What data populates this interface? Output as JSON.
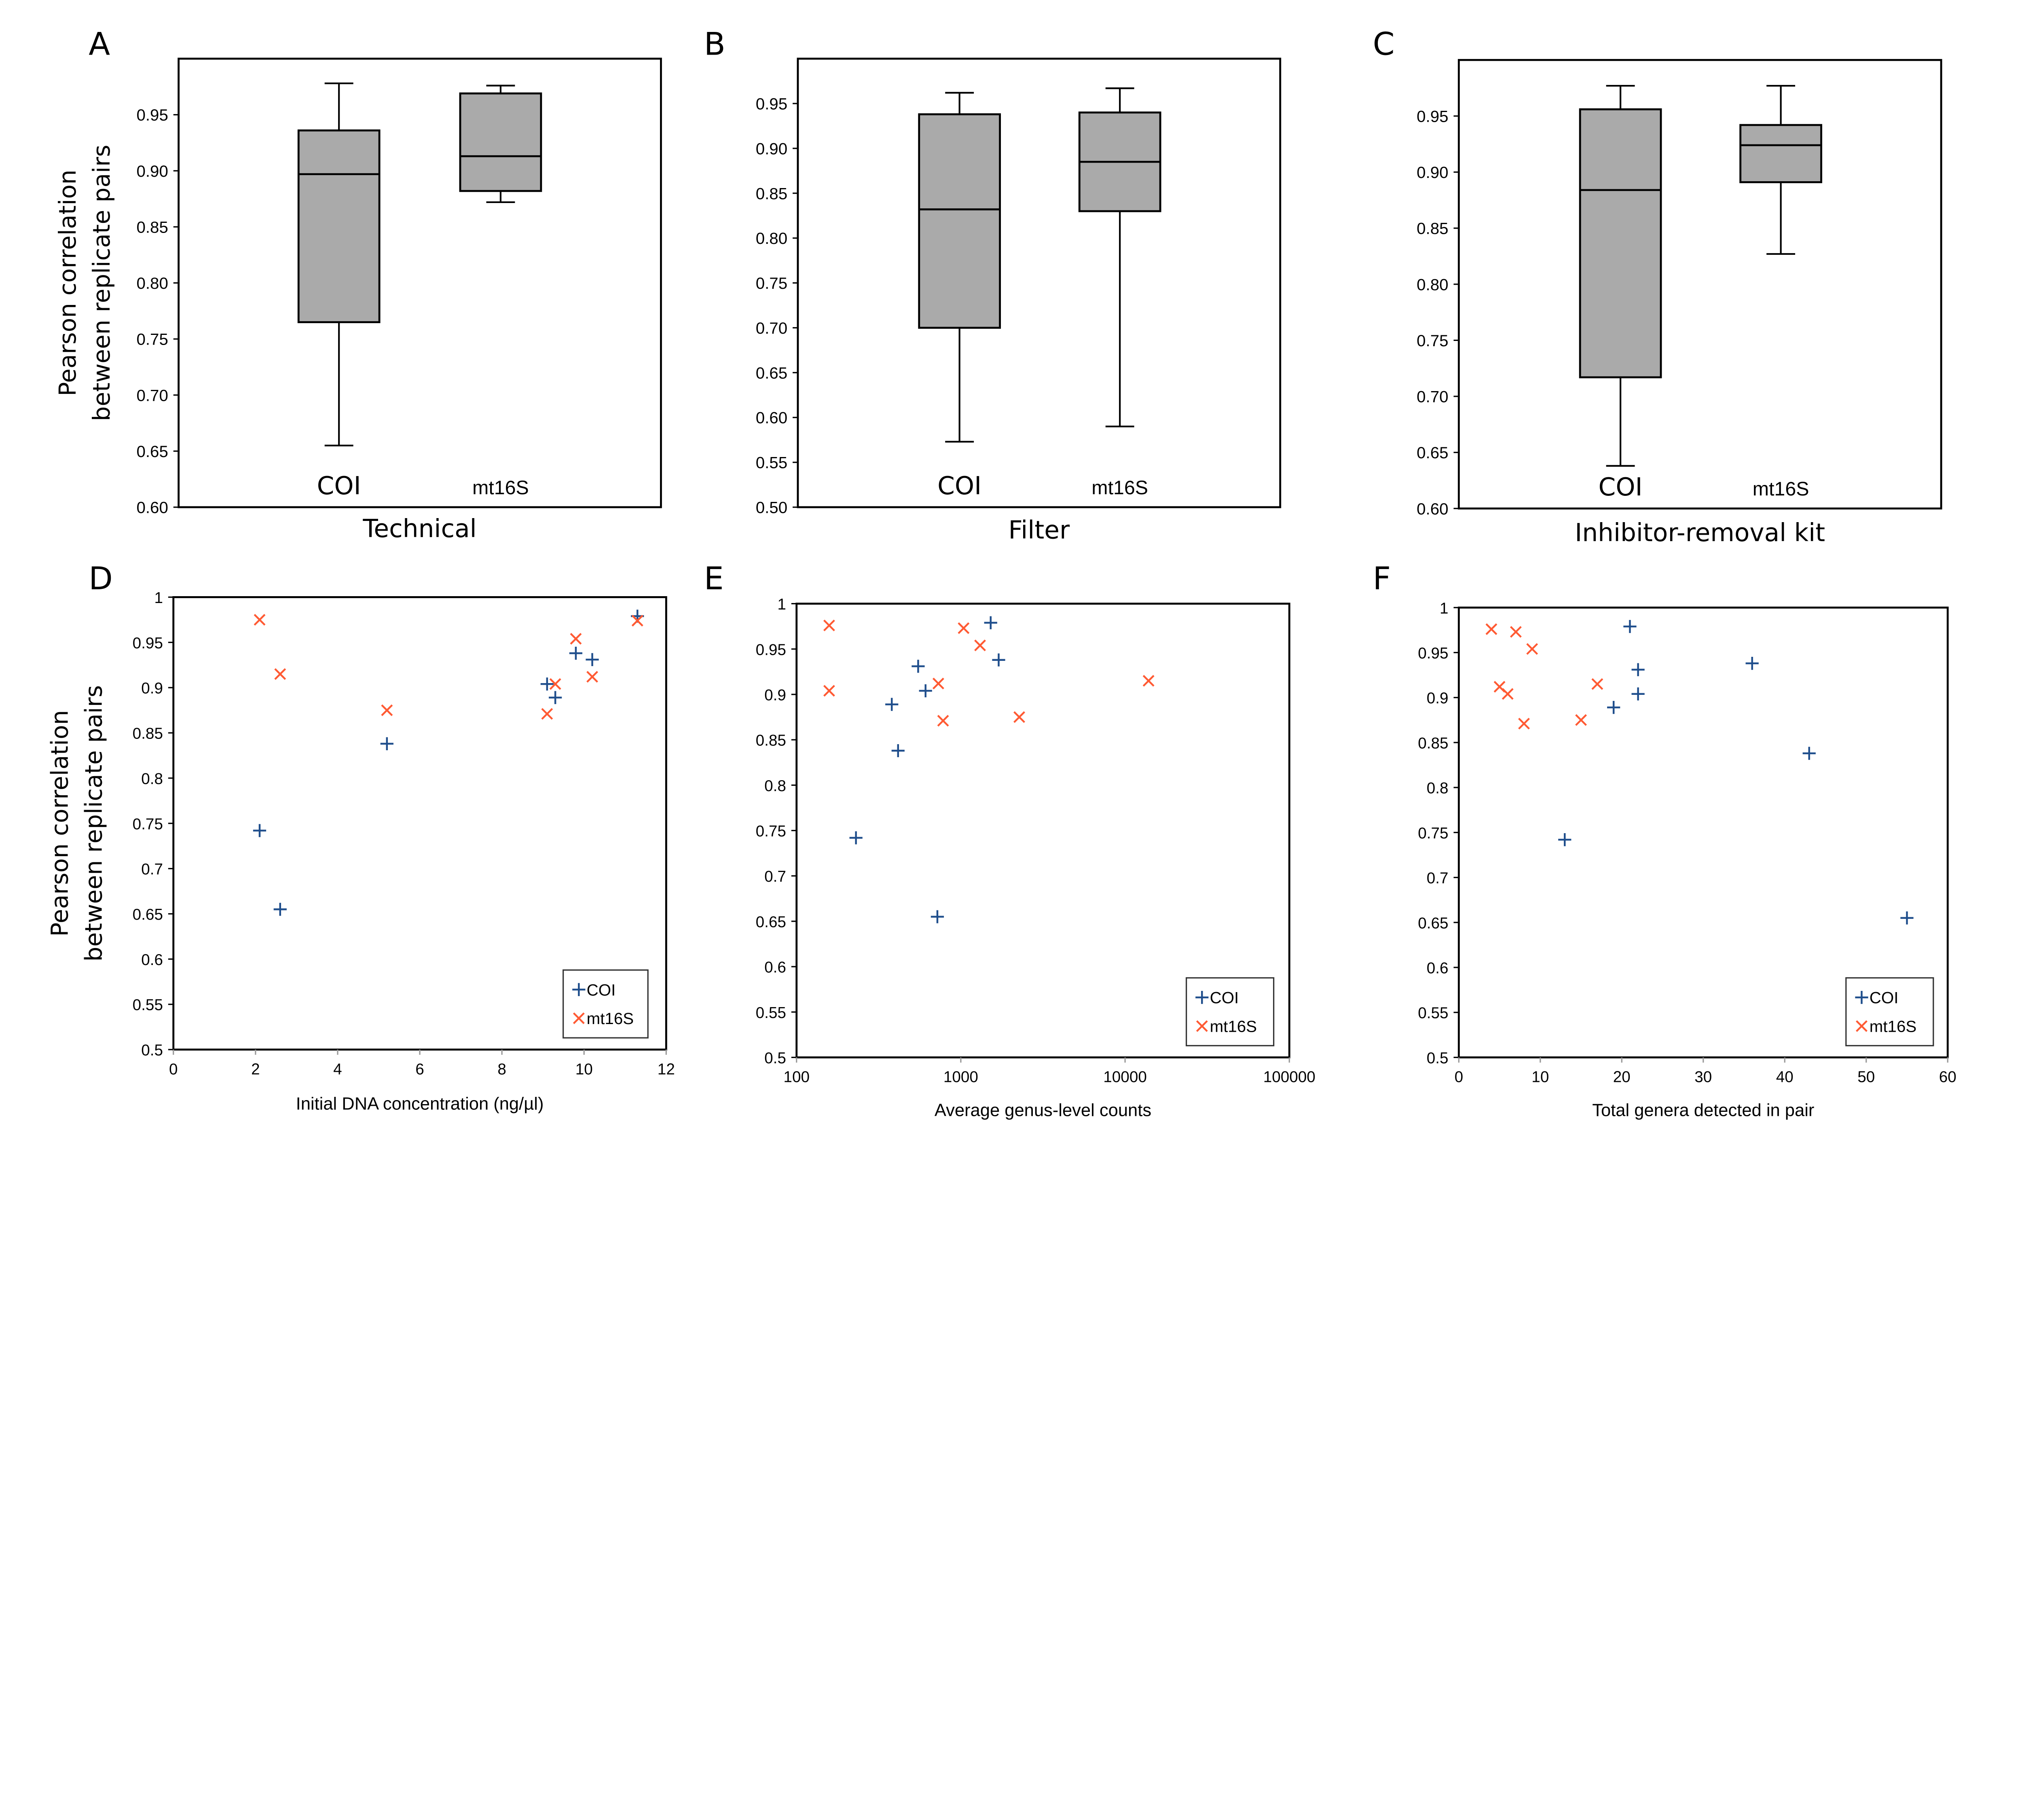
{
  "colors": {
    "box_fill": "#aaaaaa",
    "COI": "#1f4e8c",
    "mt16S": "#ff5a33"
  },
  "chart_data": [
    {
      "panel_label": "A",
      "type": "box",
      "xlabel": "Technical",
      "ylabel": [
        "Pearson correlation",
        "between replicate pairs"
      ],
      "ylim": [
        0.6,
        1.0
      ],
      "yticks": [
        "0.60",
        "0.65",
        "0.70",
        "0.75",
        "0.80",
        "0.85",
        "0.90",
        "0.95"
      ],
      "categories": [
        "COI",
        "mt16S"
      ],
      "boxes": [
        {
          "min": 0.655,
          "q1": 0.765,
          "median": 0.897,
          "q3": 0.936,
          "max": 0.978
        },
        {
          "min": 0.872,
          "q1": 0.882,
          "median": 0.913,
          "q3": 0.969,
          "max": 0.976
        }
      ]
    },
    {
      "panel_label": "B",
      "type": "box",
      "xlabel": "Filter",
      "ylim": [
        0.5,
        1.0
      ],
      "yticks": [
        "0.50",
        "0.55",
        "0.60",
        "0.65",
        "0.70",
        "0.75",
        "0.80",
        "0.85",
        "0.90",
        "0.95"
      ],
      "categories": [
        "COI",
        "mt16S"
      ],
      "boxes": [
        {
          "min": 0.573,
          "q1": 0.7,
          "median": 0.832,
          "q3": 0.938,
          "max": 0.962
        },
        {
          "min": 0.59,
          "q1": 0.83,
          "median": 0.885,
          "q3": 0.94,
          "max": 0.967
        }
      ]
    },
    {
      "panel_label": "C",
      "type": "box",
      "xlabel": "Inhibitor-removal kit",
      "ylim": [
        0.6,
        1.0
      ],
      "yticks": [
        "0.60",
        "0.65",
        "0.70",
        "0.75",
        "0.80",
        "0.85",
        "0.90",
        "0.95"
      ],
      "categories": [
        "COI",
        "mt16S"
      ],
      "boxes": [
        {
          "min": 0.638,
          "q1": 0.717,
          "median": 0.884,
          "q3": 0.956,
          "max": 0.977
        },
        {
          "min": 0.827,
          "q1": 0.891,
          "median": 0.924,
          "q3": 0.942,
          "max": 0.977
        }
      ]
    },
    {
      "panel_label": "D",
      "type": "scatter",
      "xlabel": "Initial DNA concentration (ng/µl)",
      "ylabel": [
        "Pearson correlation",
        "between replicate pairs"
      ],
      "xlim": [
        0,
        12
      ],
      "xticks": [
        "0",
        "2",
        "4",
        "6",
        "8",
        "10",
        "12"
      ],
      "xscale": "linear",
      "ylim": [
        0.5,
        1
      ],
      "yticks": [
        "0.5",
        "0.55",
        "0.6",
        "0.65",
        "0.7",
        "0.75",
        "0.8",
        "0.85",
        "0.9",
        "0.95",
        "1"
      ],
      "legend": "bottom-right",
      "series": [
        {
          "name": "COI",
          "marker": "plus",
          "x": [
            2.1,
            2.6,
            5.2,
            9.1,
            9.3,
            9.8,
            10.2,
            11.3
          ],
          "y": [
            0.742,
            0.655,
            0.838,
            0.904,
            0.889,
            0.938,
            0.931,
            0.979
          ]
        },
        {
          "name": "mt16S",
          "marker": "cross",
          "x": [
            2.1,
            2.6,
            5.2,
            9.1,
            9.3,
            9.8,
            10.2,
            11.3
          ],
          "y": [
            0.975,
            0.915,
            0.875,
            0.871,
            0.904,
            0.954,
            0.912,
            0.974
          ]
        }
      ]
    },
    {
      "panel_label": "E",
      "type": "scatter",
      "xlabel": "Average genus-level counts",
      "xlim": [
        100,
        100000
      ],
      "xticks": [
        "100",
        "1000",
        "10000",
        "100000"
      ],
      "xscale": "log",
      "ylim": [
        0.5,
        1
      ],
      "yticks": [
        "0.5",
        "0.55",
        "0.6",
        "0.65",
        "0.7",
        "0.75",
        "0.8",
        "0.85",
        "0.9",
        "0.95",
        "1"
      ],
      "legend": "bottom-right",
      "series": [
        {
          "name": "COI",
          "marker": "plus",
          "x": [
            1520,
            1700,
            550,
            610,
            380,
            415,
            230,
            720
          ],
          "y": [
            0.979,
            0.938,
            0.931,
            0.904,
            0.889,
            0.838,
            0.742,
            0.655
          ]
        },
        {
          "name": "mt16S",
          "marker": "cross",
          "x": [
            158,
            158,
            1040,
            1310,
            730,
            780,
            2270,
            13900
          ],
          "y": [
            0.976,
            0.904,
            0.973,
            0.954,
            0.912,
            0.871,
            0.875,
            0.915
          ]
        }
      ]
    },
    {
      "panel_label": "F",
      "type": "scatter",
      "xlabel": "Total genera detected in pair",
      "xlim": [
        0,
        60
      ],
      "xticks": [
        "0",
        "10",
        "20",
        "30",
        "40",
        "50",
        "60"
      ],
      "xscale": "linear",
      "ylim": [
        0.5,
        1
      ],
      "yticks": [
        "0.5",
        "0.55",
        "0.6",
        "0.65",
        "0.7",
        "0.75",
        "0.8",
        "0.85",
        "0.9",
        "0.95",
        "1"
      ],
      "legend": "bottom-right",
      "series": [
        {
          "name": "COI",
          "marker": "plus",
          "x": [
            21,
            22,
            22,
            19,
            36,
            43,
            13,
            55
          ],
          "y": [
            0.979,
            0.931,
            0.904,
            0.889,
            0.938,
            0.838,
            0.742,
            0.655
          ]
        },
        {
          "name": "mt16S",
          "marker": "cross",
          "x": [
            4,
            7,
            9,
            5,
            6,
            17,
            8,
            15
          ],
          "y": [
            0.976,
            0.973,
            0.954,
            0.912,
            0.904,
            0.915,
            0.871,
            0.875
          ]
        }
      ]
    }
  ]
}
